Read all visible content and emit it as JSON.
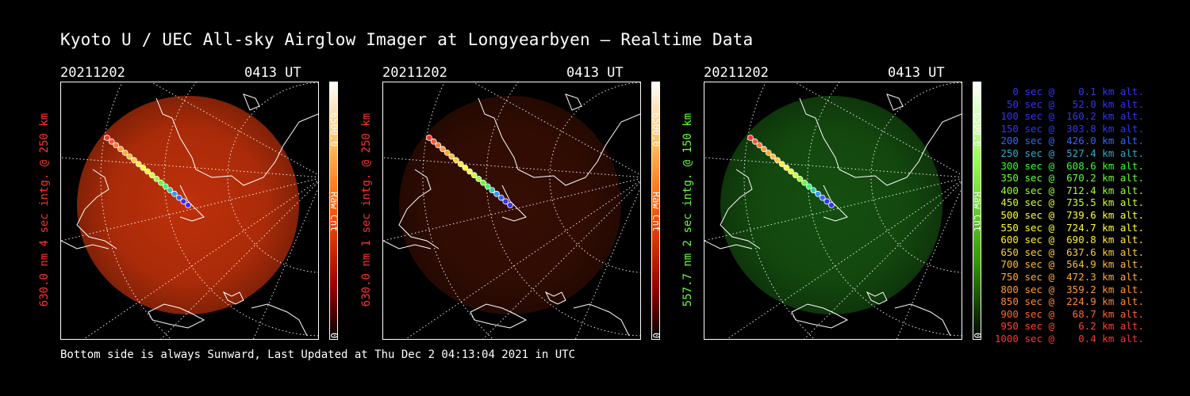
{
  "title": "Kyoto U / UEC All-sky Airglow Imager at Longyearbyen — Realtime Data",
  "footer": "Bottom side is always Sunward, Last Updated at Thu Dec  2 04:13:04 2021 in UTC",
  "colors": {
    "red": "#ff3030",
    "green": "#66ff33",
    "white": "#ffffff"
  },
  "panels": [
    {
      "date": "20211202",
      "time": "0413 UT",
      "ylabel": "630.0 nm  4 sec intg. @ 250 km",
      "cbar_max": "6500.0",
      "cbar_unit": "Raw Cnt",
      "cbar_min": "0",
      "scheme": "red",
      "intensity": 1.0
    },
    {
      "date": "20211202",
      "time": "0413 UT",
      "ylabel": "630.0 nm  1 sec intg. @ 250 km",
      "cbar_max": "6500.0",
      "cbar_unit": "Raw Cnt",
      "cbar_min": "0",
      "scheme": "red",
      "intensity": 0.28
    },
    {
      "date": "20211202",
      "time": "0413 UT",
      "ylabel": "557.7 nm  2 sec intg. @ 150 km",
      "cbar_max": "6500.0",
      "cbar_unit": "Raw Cnt",
      "cbar_min": "0",
      "scheme": "green",
      "intensity": 0.55
    }
  ],
  "legend": [
    {
      "text": "   0 sec @    0.1 km alt.",
      "color": "#3333ff"
    },
    {
      "text": "  50 sec @   52.0 km alt.",
      "color": "#3333ff"
    },
    {
      "text": " 100 sec @  160.2 km alt.",
      "color": "#3333ff"
    },
    {
      "text": " 150 sec @  303.8 km alt.",
      "color": "#3333ff"
    },
    {
      "text": " 200 sec @  426.0 km alt.",
      "color": "#3366ff"
    },
    {
      "text": " 250 sec @  527.4 km alt.",
      "color": "#33aacc"
    },
    {
      "text": " 300 sec @  608.6 km alt.",
      "color": "#33ff33"
    },
    {
      "text": " 350 sec @  670.2 km alt.",
      "color": "#66ff33"
    },
    {
      "text": " 400 sec @  712.4 km alt.",
      "color": "#99ff33"
    },
    {
      "text": " 450 sec @  735.5 km alt.",
      "color": "#ccff33"
    },
    {
      "text": " 500 sec @  739.6 km alt.",
      "color": "#ffff33"
    },
    {
      "text": " 550 sec @  724.7 km alt.",
      "color": "#ffff33"
    },
    {
      "text": " 600 sec @  690.8 km alt.",
      "color": "#ffee33"
    },
    {
      "text": " 650 sec @  637.6 km alt.",
      "color": "#ffcc33"
    },
    {
      "text": " 700 sec @  564.9 km alt.",
      "color": "#ffbb33"
    },
    {
      "text": " 750 sec @  472.3 km alt.",
      "color": "#ffaa33"
    },
    {
      "text": " 800 sec @  359.2 km alt.",
      "color": "#ff9933"
    },
    {
      "text": " 850 sec @  224.9 km alt.",
      "color": "#ff8833"
    },
    {
      "text": " 900 sec @   68.7 km alt.",
      "color": "#ff6633"
    },
    {
      "text": " 950 sec @    6.2 km alt.",
      "color": "#ff4433"
    },
    {
      "text": "1000 sec @    0.4 km alt.",
      "color": "#ff3333"
    }
  ]
}
